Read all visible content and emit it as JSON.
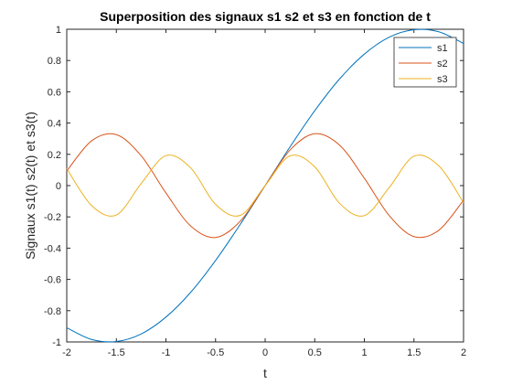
{
  "chart_data": {
    "type": "line",
    "title": "Superposition des signaux s1 s2 et s3 en fonction de t",
    "xlabel": "t",
    "ylabel": "Signaux s1(t) s2(t) et s3(t)",
    "xlim": [
      -2,
      2
    ],
    "ylim": [
      -1,
      1
    ],
    "xticks": [
      -2,
      -1.5,
      -1,
      -0.5,
      0,
      0.5,
      1,
      1.5,
      2
    ],
    "xtick_labels": [
      "-2",
      "-1.5",
      "-1",
      "-0.5",
      "0",
      "0.5",
      "1",
      "1.5",
      "2"
    ],
    "yticks": [
      -1,
      -0.8,
      -0.6,
      -0.4,
      -0.2,
      0,
      0.2,
      0.4,
      0.6,
      0.8,
      1
    ],
    "ytick_labels": [
      "-1",
      "-0.8",
      "-0.6",
      "-0.4",
      "-0.2",
      "0",
      "0.2",
      "0.4",
      "0.6",
      "0.8",
      "1"
    ],
    "grid": false,
    "legend_position": "top-right",
    "series": [
      {
        "name": "s1",
        "color": "#0072BD",
        "x": [
          -2,
          -1.75,
          -1.5,
          -1.25,
          -1,
          -0.75,
          -0.5,
          -0.25,
          0,
          0.25,
          0.5,
          0.75,
          1,
          1.25,
          1.5,
          1.75,
          2
        ],
        "y": [
          -0.909,
          -0.984,
          -0.997,
          -0.949,
          -0.841,
          -0.682,
          -0.479,
          -0.247,
          0,
          0.247,
          0.479,
          0.682,
          0.841,
          0.949,
          0.997,
          0.984,
          0.909
        ]
      },
      {
        "name": "s2",
        "color": "#D95319",
        "x": [
          -2,
          -1.75,
          -1.5,
          -1.25,
          -1,
          -0.75,
          -0.5,
          -0.25,
          0,
          0.25,
          0.5,
          0.75,
          1,
          1.25,
          1.5,
          1.75,
          2
        ],
        "y": [
          0.093,
          0.286,
          0.326,
          0.191,
          -0.047,
          -0.259,
          -0.332,
          -0.227,
          0,
          0.227,
          0.332,
          0.259,
          0.047,
          -0.191,
          -0.326,
          -0.286,
          -0.093
        ]
      },
      {
        "name": "s3",
        "color": "#EDB120",
        "x": [
          -2,
          -1.75,
          -1.5,
          -1.25,
          -1,
          -0.75,
          -0.5,
          -0.25,
          0,
          0.25,
          0.5,
          0.75,
          1,
          1.25,
          1.5,
          1.75,
          2
        ],
        "y": [
          0.109,
          -0.127,
          -0.188,
          0.013,
          0.192,
          0.113,
          -0.12,
          -0.19,
          0,
          0.19,
          0.12,
          -0.113,
          -0.192,
          -0.013,
          0.188,
          0.127,
          -0.109
        ]
      }
    ]
  }
}
